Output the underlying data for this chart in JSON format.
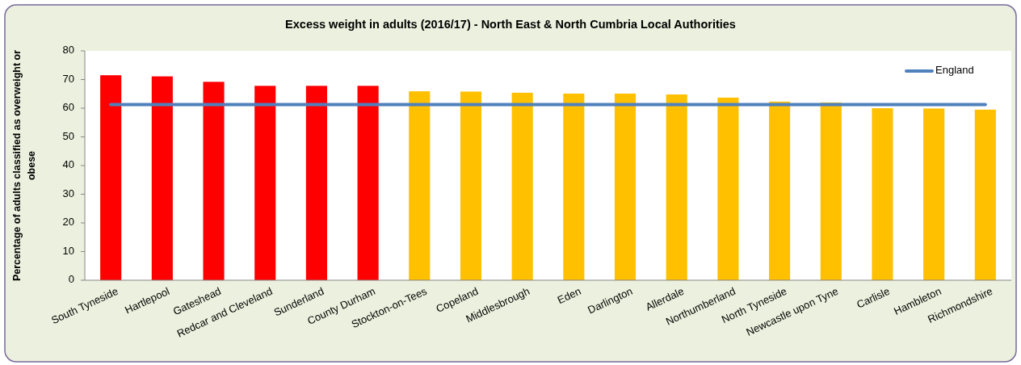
{
  "chart_data": {
    "type": "bar",
    "title": "Excess weight in adults (2016/17) - North East & North Cumbria Local Authorities",
    "ylabel": "Percentage of adults classified as overweight or obese",
    "categories": [
      "South Tyneside",
      "Hartlepool",
      "Gateshead",
      "Redcar and Cleveland",
      "Sunderland",
      "County Durham",
      "Stockton-on-Tees",
      "Copeland",
      "Middlesbrough",
      "Eden",
      "Darlington",
      "Allerdale",
      "Northumberland",
      "North Tyneside",
      "Newcastle upon Tyne",
      "Carlisle",
      "Hambleton",
      "Richmondshire"
    ],
    "series": [
      {
        "colors": [
          "#ff0000",
          "#ff0000",
          "#ff0000",
          "#ff0000",
          "#ff0000",
          "#ff0000",
          "#ffc000",
          "#ffc000",
          "#ffc000",
          "#ffc000",
          "#ffc000",
          "#ffc000",
          "#ffc000",
          "#ffc000",
          "#ffc000",
          "#ffc000",
          "#ffc000",
          "#ffc000"
        ],
        "values": [
          71.5,
          71.1,
          69.2,
          67.8,
          67.8,
          67.8,
          65.9,
          65.8,
          65.4,
          65.1,
          65.1,
          64.8,
          63.7,
          62.3,
          62.0,
          60.0,
          59.9,
          59.5
        ]
      },
      {
        "type": "line",
        "name": "England",
        "color": "#4f81bd",
        "values": [
          61.3,
          61.3,
          61.3,
          61.3,
          61.3,
          61.3,
          61.3,
          61.3,
          61.3,
          61.3,
          61.3,
          61.3,
          61.3,
          61.3,
          61.3,
          61.3,
          61.3,
          61.3
        ]
      }
    ],
    "ylim": [
      0,
      80
    ],
    "yticks": [
      0,
      10,
      20,
      30,
      40,
      50,
      60,
      70,
      80
    ],
    "legend": "top right"
  }
}
